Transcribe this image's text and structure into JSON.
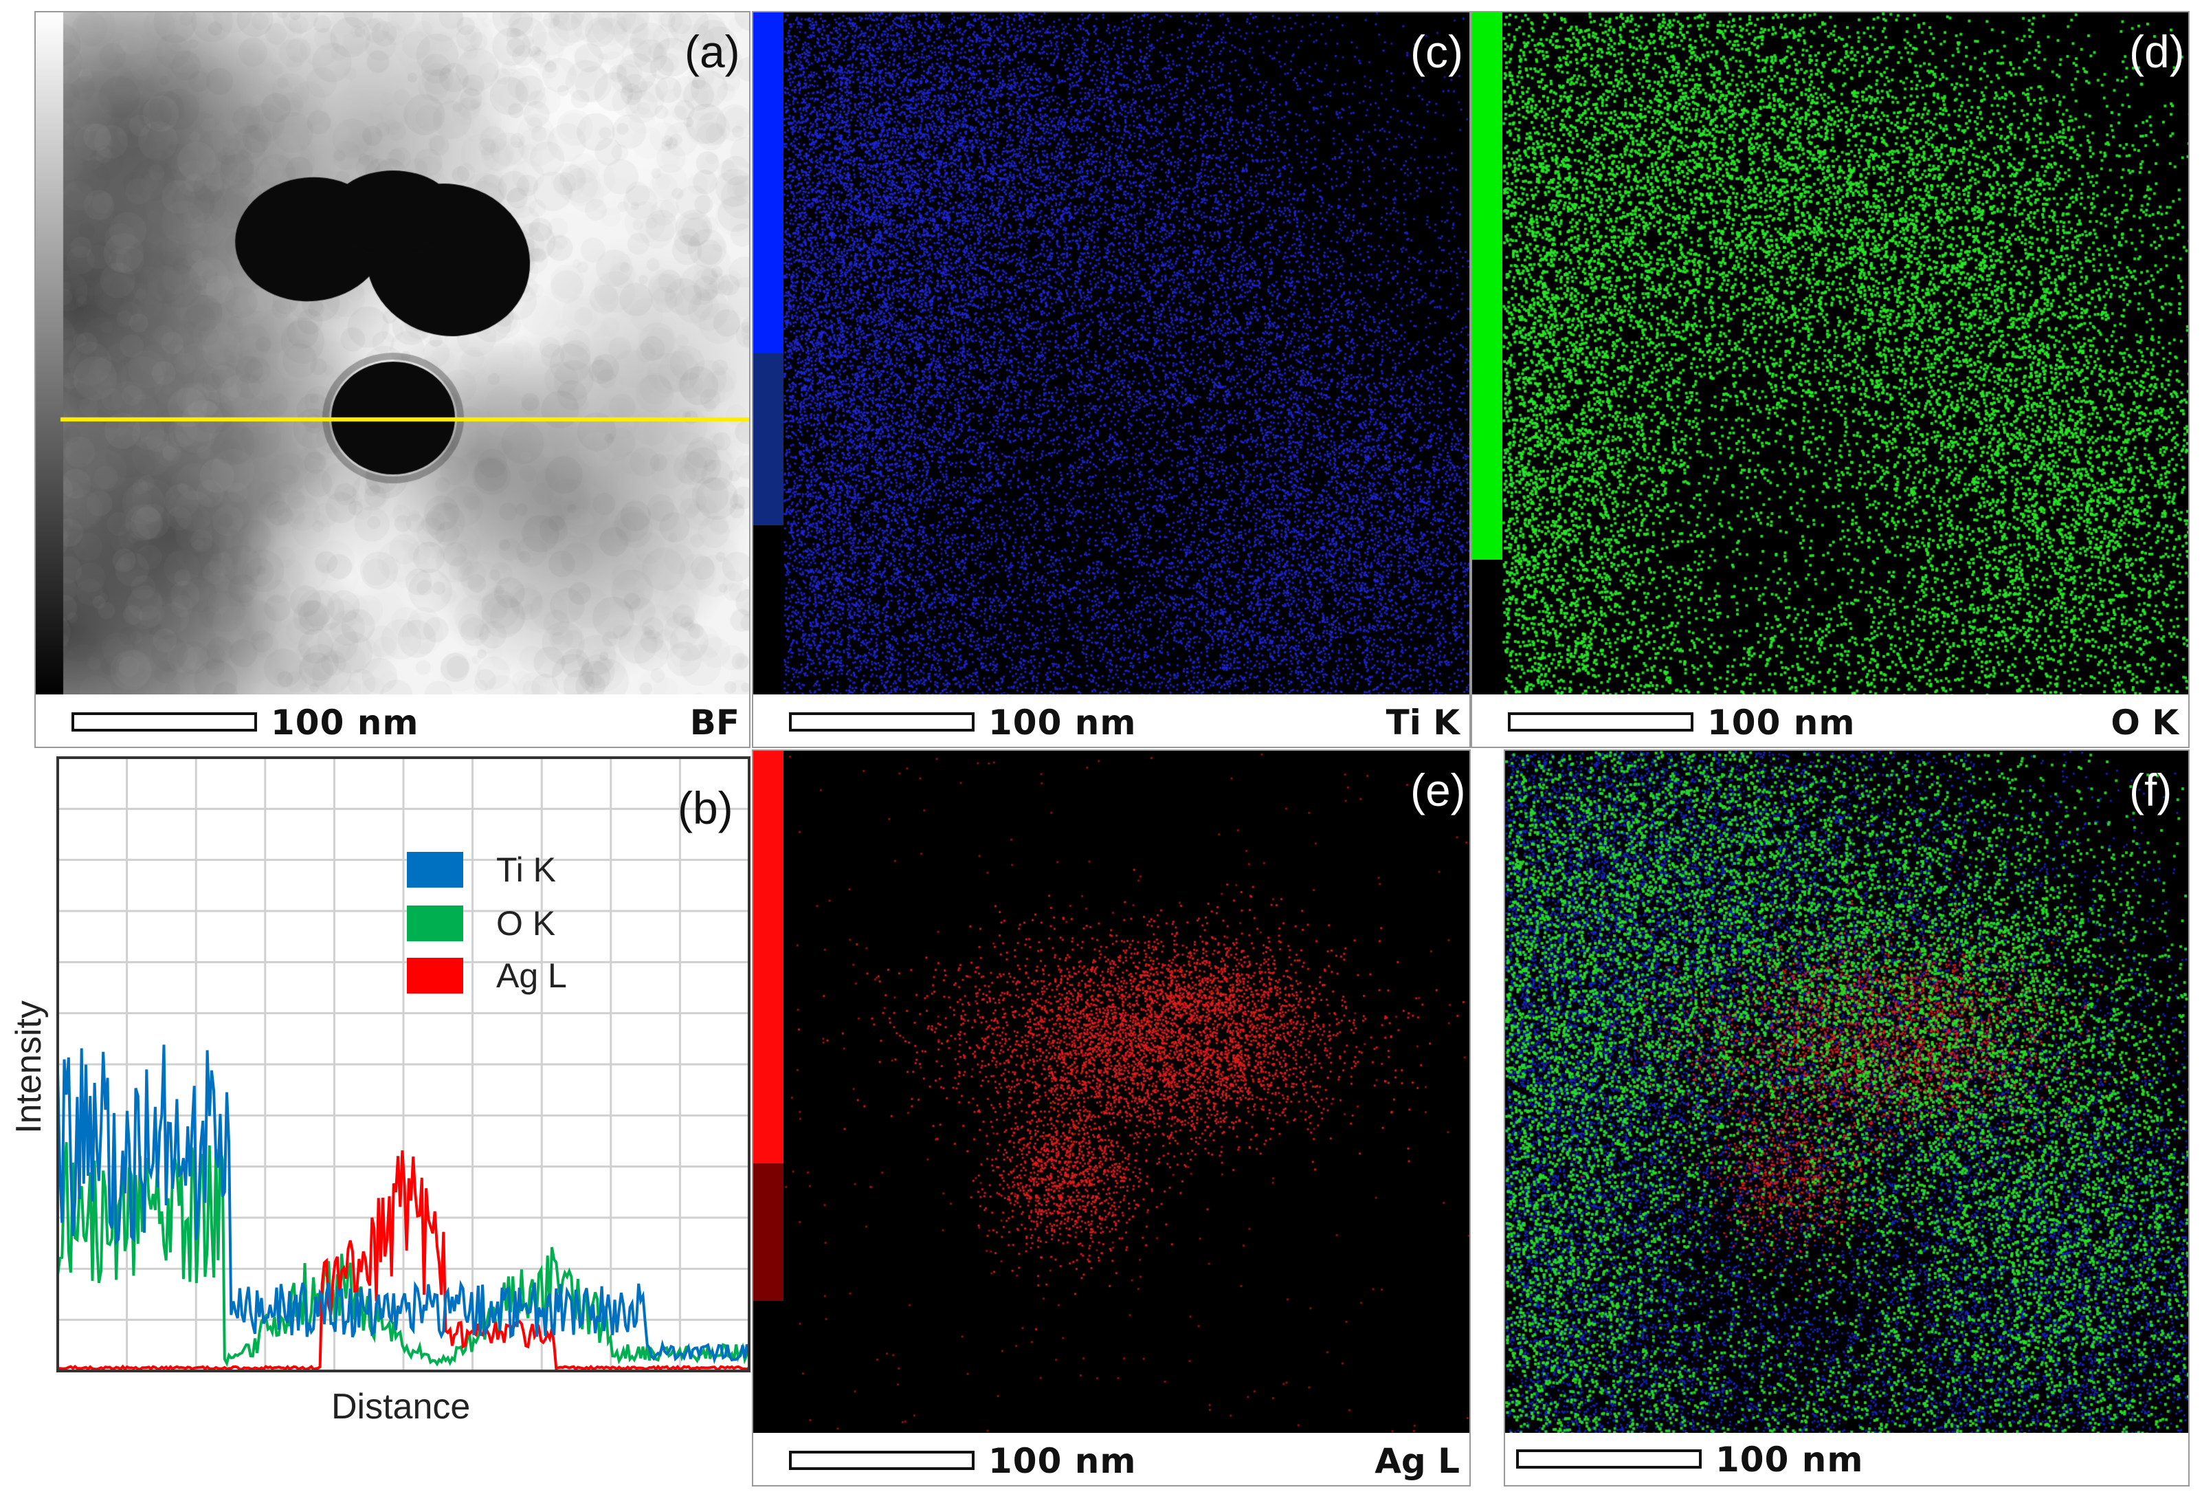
{
  "panels": {
    "a": {
      "label": "(a)",
      "scale": "100 nm",
      "channel": "BF"
    },
    "b": {
      "label": "(b)"
    },
    "c": {
      "label": "(c)",
      "scale": "100 nm",
      "channel": "Ti K",
      "color": "#0000ff"
    },
    "d": {
      "label": "(d)",
      "scale": "100 nm",
      "channel": "O K",
      "color": "#00ee00"
    },
    "e": {
      "label": "(e)",
      "scale": "100 nm",
      "channel": "Ag L",
      "color": "#ff0000"
    },
    "f": {
      "label": "(f)",
      "scale": "100 nm"
    }
  },
  "chart_data": {
    "type": "line",
    "xlabel": "Distance",
    "ylabel": "Intensity",
    "legend": "top-center",
    "grid": true,
    "series": [
      {
        "name": "Ti K",
        "color": "#0070c0"
      },
      {
        "name": "O K",
        "color": "#00b050"
      },
      {
        "name": "Ag L",
        "color": "#ff0000"
      }
    ]
  }
}
